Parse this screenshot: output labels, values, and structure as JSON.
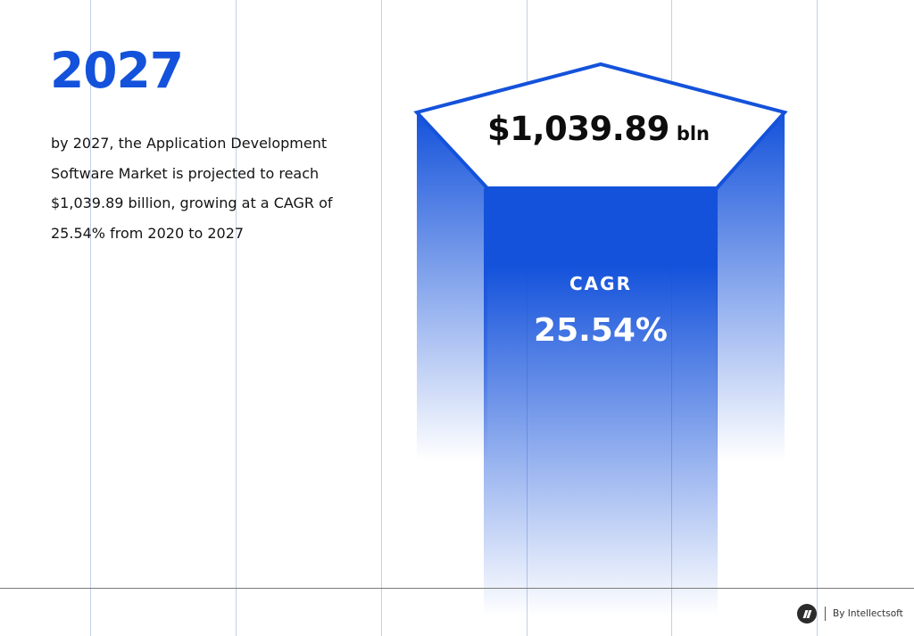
{
  "headline": {
    "year": "2027",
    "description": "by 2027, the Application Development Software Market is projected to reach $1,039.89 billion, growing at a CAGR of 25.54% from 2020 to 2027"
  },
  "graphic": {
    "amount_value": "$1,039.89",
    "amount_unit": "bln",
    "cagr_label": "CAGR",
    "cagr_value": "25.54%"
  },
  "colors": {
    "accent": "#1452db",
    "text": "#141414",
    "guide_lines": "#b9c7e6"
  },
  "footer": {
    "brand_icon": "intellectsoft-logo-icon",
    "brand_text": "By Intellectsoft"
  }
}
